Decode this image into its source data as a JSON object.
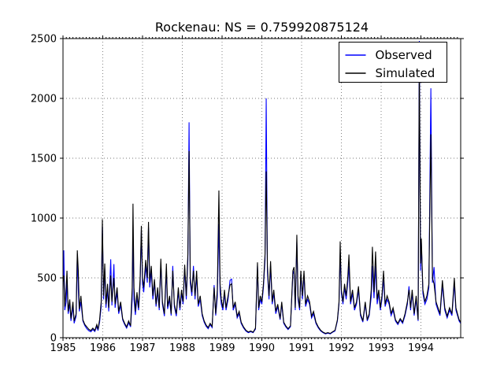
{
  "title": "Rockenau: NS = 0.759920875124",
  "legend": {
    "position": "upper right",
    "items": [
      {
        "label": "Observed",
        "color": "#0000ff"
      },
      {
        "label": "Simulated",
        "color": "#000000"
      }
    ]
  },
  "colors": {
    "observed": "#0000ff",
    "simulated": "#000000",
    "grid": "#777777",
    "frame": "#000000",
    "background": "#ffffff"
  },
  "chart_data": {
    "type": "line",
    "title": "Rockenau: NS = 0.759920875124",
    "xlabel": "",
    "ylabel": "",
    "xlim": [
      1985,
      1995
    ],
    "ylim": [
      0,
      2500
    ],
    "xticks_major": [
      1985,
      1986,
      1987,
      1988,
      1989,
      1990,
      1991,
      1992,
      1993,
      1994
    ],
    "xtick_labels": [
      "1985",
      "1986",
      "1987",
      "1988",
      "1989",
      "1990",
      "1991",
      "1992",
      "1993",
      "1994"
    ],
    "xminor_per_year": 12,
    "yticks": [
      0,
      500,
      1000,
      1500,
      2000,
      2500
    ],
    "ytick_labels": [
      "0",
      "500",
      "1000",
      "1500",
      "2000",
      "2500"
    ],
    "grid": {
      "visible": true,
      "style": "dotted"
    },
    "legend_position": "upper right",
    "series_names": [
      "Observed",
      "Simulated"
    ],
    "columns": [
      "decimal_year",
      "observed",
      "simulated"
    ],
    "points": [
      [
        1985.0,
        400,
        470
      ],
      [
        1985.02,
        730,
        520
      ],
      [
        1985.045,
        230,
        260
      ],
      [
        1985.08,
        300,
        420
      ],
      [
        1985.1,
        480,
        560
      ],
      [
        1985.13,
        200,
        220
      ],
      [
        1985.17,
        280,
        320
      ],
      [
        1985.2,
        140,
        160
      ],
      [
        1985.25,
        260,
        300
      ],
      [
        1985.28,
        120,
        140
      ],
      [
        1985.33,
        180,
        200
      ],
      [
        1985.36,
        700,
        730
      ],
      [
        1985.385,
        400,
        560
      ],
      [
        1985.41,
        220,
        240
      ],
      [
        1985.45,
        300,
        350
      ],
      [
        1985.5,
        140,
        150
      ],
      [
        1985.55,
        100,
        110
      ],
      [
        1985.6,
        75,
        90
      ],
      [
        1985.65,
        58,
        70
      ],
      [
        1985.7,
        50,
        60
      ],
      [
        1985.75,
        68,
        80
      ],
      [
        1985.8,
        52,
        60
      ],
      [
        1985.85,
        95,
        110
      ],
      [
        1985.88,
        60,
        70
      ],
      [
        1985.92,
        130,
        150
      ],
      [
        1985.96,
        260,
        300
      ],
      [
        1985.99,
        930,
        990
      ],
      [
        1986.02,
        320,
        350
      ],
      [
        1986.05,
        580,
        620
      ],
      [
        1986.08,
        250,
        280
      ],
      [
        1986.12,
        400,
        450
      ],
      [
        1986.15,
        220,
        250
      ],
      [
        1986.2,
        655,
        520
      ],
      [
        1986.23,
        270,
        300
      ],
      [
        1986.28,
        615,
        500
      ],
      [
        1986.31,
        250,
        280
      ],
      [
        1986.36,
        380,
        420
      ],
      [
        1986.4,
        200,
        220
      ],
      [
        1986.45,
        270,
        300
      ],
      [
        1986.5,
        150,
        160
      ],
      [
        1986.55,
        110,
        120
      ],
      [
        1986.6,
        80,
        90
      ],
      [
        1986.65,
        125,
        140
      ],
      [
        1986.7,
        90,
        100
      ],
      [
        1986.74,
        320,
        420
      ],
      [
        1986.76,
        820,
        1120
      ],
      [
        1986.785,
        320,
        420
      ],
      [
        1986.82,
        190,
        220
      ],
      [
        1986.86,
        340,
        380
      ],
      [
        1986.9,
        230,
        250
      ],
      [
        1986.94,
        450,
        500
      ],
      [
        1986.97,
        900,
        935
      ],
      [
        1987.0,
        450,
        500
      ],
      [
        1987.03,
        380,
        420
      ],
      [
        1987.08,
        600,
        650
      ],
      [
        1987.12,
        460,
        500
      ],
      [
        1987.15,
        920,
        968
      ],
      [
        1987.18,
        420,
        460
      ],
      [
        1987.22,
        550,
        600
      ],
      [
        1987.26,
        320,
        350
      ],
      [
        1987.3,
        460,
        490
      ],
      [
        1987.34,
        260,
        280
      ],
      [
        1987.38,
        390,
        420
      ],
      [
        1987.42,
        230,
        250
      ],
      [
        1987.46,
        620,
        660
      ],
      [
        1987.5,
        280,
        300
      ],
      [
        1987.55,
        180,
        200
      ],
      [
        1987.6,
        560,
        620
      ],
      [
        1987.63,
        240,
        260
      ],
      [
        1987.68,
        320,
        350
      ],
      [
        1987.72,
        185,
        200
      ],
      [
        1987.76,
        600,
        560
      ],
      [
        1987.8,
        260,
        280
      ],
      [
        1987.85,
        180,
        200
      ],
      [
        1987.9,
        390,
        420
      ],
      [
        1987.94,
        230,
        250
      ],
      [
        1987.98,
        370,
        400
      ],
      [
        1988.02,
        280,
        300
      ],
      [
        1988.06,
        580,
        610
      ],
      [
        1988.1,
        320,
        350
      ],
      [
        1988.14,
        650,
        700
      ],
      [
        1988.17,
        1800,
        1560
      ],
      [
        1988.2,
        460,
        500
      ],
      [
        1988.24,
        350,
        380
      ],
      [
        1988.28,
        600,
        560
      ],
      [
        1988.32,
        320,
        350
      ],
      [
        1988.36,
        520,
        560
      ],
      [
        1988.4,
        260,
        280
      ],
      [
        1988.45,
        320,
        350
      ],
      [
        1988.5,
        185,
        200
      ],
      [
        1988.55,
        130,
        140
      ],
      [
        1988.6,
        95,
        105
      ],
      [
        1988.65,
        75,
        85
      ],
      [
        1988.7,
        110,
        120
      ],
      [
        1988.75,
        85,
        95
      ],
      [
        1988.8,
        440,
        420
      ],
      [
        1988.84,
        185,
        200
      ],
      [
        1988.88,
        340,
        400
      ],
      [
        1988.92,
        950,
        1230
      ],
      [
        1988.95,
        380,
        450
      ],
      [
        1988.98,
        280,
        320
      ],
      [
        1989.02,
        230,
        250
      ],
      [
        1989.06,
        370,
        400
      ],
      [
        1989.1,
        230,
        250
      ],
      [
        1989.15,
        320,
        350
      ],
      [
        1989.2,
        480,
        440
      ],
      [
        1989.24,
        490,
        450
      ],
      [
        1989.28,
        230,
        250
      ],
      [
        1989.33,
        280,
        300
      ],
      [
        1989.38,
        165,
        180
      ],
      [
        1989.43,
        200,
        220
      ],
      [
        1989.48,
        120,
        130
      ],
      [
        1989.54,
        82,
        90
      ],
      [
        1989.6,
        55,
        62
      ],
      [
        1989.66,
        42,
        48
      ],
      [
        1989.72,
        50,
        56
      ],
      [
        1989.78,
        42,
        46
      ],
      [
        1989.84,
        72,
        80
      ],
      [
        1989.89,
        600,
        630
      ],
      [
        1989.92,
        230,
        250
      ],
      [
        1989.96,
        320,
        350
      ],
      [
        1990.0,
        280,
        300
      ],
      [
        1990.04,
        420,
        450
      ],
      [
        1990.08,
        650,
        700
      ],
      [
        1990.11,
        2000,
        1390
      ],
      [
        1990.14,
        550,
        600
      ],
      [
        1990.18,
        320,
        350
      ],
      [
        1990.22,
        600,
        640
      ],
      [
        1990.26,
        280,
        300
      ],
      [
        1990.3,
        370,
        400
      ],
      [
        1990.35,
        200,
        220
      ],
      [
        1990.4,
        260,
        280
      ],
      [
        1990.46,
        150,
        160
      ],
      [
        1990.5,
        280,
        300
      ],
      [
        1990.55,
        120,
        130
      ],
      [
        1990.6,
        92,
        100
      ],
      [
        1990.66,
        68,
        75
      ],
      [
        1990.72,
        92,
        100
      ],
      [
        1990.78,
        530,
        560
      ],
      [
        1990.81,
        560,
        590
      ],
      [
        1990.84,
        230,
        250
      ],
      [
        1990.88,
        800,
        860
      ],
      [
        1990.91,
        320,
        350
      ],
      [
        1990.95,
        230,
        250
      ],
      [
        1990.98,
        530,
        560
      ],
      [
        1991.02,
        320,
        350
      ],
      [
        1991.06,
        520,
        560
      ],
      [
        1991.1,
        260,
        280
      ],
      [
        1991.15,
        320,
        350
      ],
      [
        1991.2,
        280,
        300
      ],
      [
        1991.25,
        165,
        180
      ],
      [
        1991.3,
        200,
        220
      ],
      [
        1991.36,
        120,
        130
      ],
      [
        1991.42,
        82,
        90
      ],
      [
        1991.48,
        56,
        62
      ],
      [
        1991.54,
        42,
        46
      ],
      [
        1991.6,
        32,
        36
      ],
      [
        1991.66,
        38,
        42
      ],
      [
        1991.72,
        32,
        36
      ],
      [
        1991.78,
        46,
        50
      ],
      [
        1991.84,
        56,
        62
      ],
      [
        1991.9,
        140,
        150
      ],
      [
        1991.94,
        280,
        300
      ],
      [
        1991.97,
        700,
        805
      ],
      [
        1992.0,
        370,
        400
      ],
      [
        1992.04,
        280,
        300
      ],
      [
        1992.08,
        420,
        450
      ],
      [
        1992.12,
        320,
        350
      ],
      [
        1992.16,
        460,
        500
      ],
      [
        1992.19,
        600,
        695
      ],
      [
        1992.23,
        280,
        300
      ],
      [
        1992.28,
        370,
        400
      ],
      [
        1992.33,
        230,
        250
      ],
      [
        1992.38,
        280,
        300
      ],
      [
        1992.43,
        400,
        430
      ],
      [
        1992.48,
        185,
        200
      ],
      [
        1992.54,
        130,
        140
      ],
      [
        1992.6,
        280,
        300
      ],
      [
        1992.65,
        140,
        150
      ],
      [
        1992.7,
        185,
        200
      ],
      [
        1992.75,
        340,
        400
      ],
      [
        1992.78,
        600,
        760
      ],
      [
        1992.82,
        330,
        380
      ],
      [
        1992.86,
        600,
        720
      ],
      [
        1992.9,
        280,
        320
      ],
      [
        1992.94,
        370,
        400
      ],
      [
        1992.98,
        230,
        250
      ],
      [
        1993.02,
        320,
        350
      ],
      [
        1993.06,
        500,
        560
      ],
      [
        1993.1,
        260,
        280
      ],
      [
        1993.15,
        320,
        350
      ],
      [
        1993.2,
        280,
        300
      ],
      [
        1993.25,
        185,
        200
      ],
      [
        1993.3,
        230,
        250
      ],
      [
        1993.36,
        140,
        150
      ],
      [
        1993.42,
        110,
        120
      ],
      [
        1993.48,
        150,
        160
      ],
      [
        1993.54,
        120,
        130
      ],
      [
        1993.6,
        185,
        200
      ],
      [
        1993.66,
        280,
        300
      ],
      [
        1993.7,
        430,
        400
      ],
      [
        1993.74,
        230,
        250
      ],
      [
        1993.78,
        370,
        400
      ],
      [
        1993.83,
        185,
        200
      ],
      [
        1993.88,
        320,
        350
      ],
      [
        1993.93,
        140,
        150
      ],
      [
        1993.96,
        2480,
        2330
      ],
      [
        1993.99,
        560,
        620
      ],
      [
        1994.01,
        800,
        830
      ],
      [
        1994.05,
        370,
        400
      ],
      [
        1994.1,
        280,
        300
      ],
      [
        1994.15,
        320,
        350
      ],
      [
        1994.2,
        420,
        450
      ],
      [
        1994.25,
        2085,
        1700
      ],
      [
        1994.29,
        460,
        500
      ],
      [
        1994.33,
        590,
        450
      ],
      [
        1994.38,
        280,
        300
      ],
      [
        1994.43,
        230,
        250
      ],
      [
        1994.48,
        185,
        200
      ],
      [
        1994.54,
        440,
        480
      ],
      [
        1994.6,
        230,
        250
      ],
      [
        1994.66,
        165,
        180
      ],
      [
        1994.72,
        230,
        250
      ],
      [
        1994.78,
        185,
        200
      ],
      [
        1994.84,
        450,
        500
      ],
      [
        1994.88,
        230,
        250
      ],
      [
        1994.92,
        185,
        200
      ],
      [
        1994.96,
        140,
        150
      ],
      [
        1995.0,
        120,
        130
      ]
    ]
  }
}
